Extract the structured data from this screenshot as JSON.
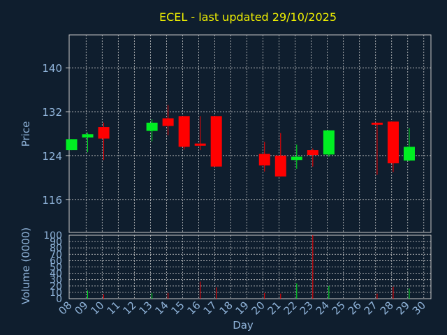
{
  "chart_data": {
    "type": "candlestick",
    "title": "ECEL - last updated 29/10/2025",
    "xlabel": "Day",
    "x_ticks": [
      "08",
      "09",
      "10",
      "11",
      "12",
      "13",
      "14",
      "15",
      "16",
      "17",
      "18",
      "19",
      "20",
      "21",
      "22",
      "23",
      "24",
      "25",
      "26",
      "27",
      "28",
      "29",
      "30"
    ],
    "price": {
      "ylabel": "Price",
      "ylim": [
        110,
        146
      ],
      "yticks": [
        116,
        124,
        132,
        140
      ],
      "candles": [
        {
          "day": 8,
          "open": 125.0,
          "close": 127.0,
          "high": 127.0,
          "low": 125.0
        },
        {
          "day": 9,
          "open": 127.3,
          "close": 127.9,
          "high": 128.2,
          "low": 124.6
        },
        {
          "day": 10,
          "open": 129.2,
          "close": 127.1,
          "high": 130.0,
          "low": 123.2
        },
        {
          "day": 13,
          "open": 128.5,
          "close": 130.0,
          "high": 130.6,
          "low": 126.6
        },
        {
          "day": 14,
          "open": 130.8,
          "close": 129.4,
          "high": 133.2,
          "low": 127.7
        },
        {
          "day": 15,
          "open": 131.2,
          "close": 125.6,
          "high": 131.2,
          "low": 125.1
        },
        {
          "day": 16,
          "open": 126.2,
          "close": 125.8,
          "high": 131.2,
          "low": 125.0
        },
        {
          "day": 17,
          "open": 131.2,
          "close": 122.0,
          "high": 131.2,
          "low": 122.0
        },
        {
          "day": 20,
          "open": 124.3,
          "close": 122.2,
          "high": 126.5,
          "low": 121.1
        },
        {
          "day": 21,
          "open": 124.0,
          "close": 120.2,
          "high": 128.1,
          "low": 120.2
        },
        {
          "day": 22,
          "open": 123.2,
          "close": 123.8,
          "high": 126.0,
          "low": 121.6
        },
        {
          "day": 23,
          "open": 125.0,
          "close": 124.1,
          "high": 125.3,
          "low": 122.0
        },
        {
          "day": 24,
          "open": 124.2,
          "close": 128.6,
          "high": 128.6,
          "low": 123.8
        },
        {
          "day": 27,
          "open": 130.0,
          "close": 129.7,
          "high": 130.0,
          "low": 120.5
        },
        {
          "day": 28,
          "open": 130.2,
          "close": 122.6,
          "high": 130.2,
          "low": 121.0
        },
        {
          "day": 29,
          "open": 123.1,
          "close": 125.6,
          "high": 129.0,
          "low": 123.0
        }
      ]
    },
    "volume": {
      "ylabel": "Volume (0000)",
      "ylim": [
        0,
        100
      ],
      "yticks": [
        0,
        10,
        20,
        30,
        40,
        50,
        60,
        70,
        80,
        90,
        100
      ],
      "bars": [
        {
          "day": 9,
          "value": 13,
          "dir": "up"
        },
        {
          "day": 10,
          "value": 7,
          "dir": "down"
        },
        {
          "day": 13,
          "value": 9,
          "dir": "up"
        },
        {
          "day": 14,
          "value": 9,
          "dir": "down"
        },
        {
          "day": 16,
          "value": 27,
          "dir": "down"
        },
        {
          "day": 17,
          "value": 18,
          "dir": "down"
        },
        {
          "day": 20,
          "value": 9,
          "dir": "down"
        },
        {
          "day": 21,
          "value": 8,
          "dir": "down"
        },
        {
          "day": 22,
          "value": 24,
          "dir": "up"
        },
        {
          "day": 23,
          "value": 100,
          "dir": "down"
        },
        {
          "day": 24,
          "value": 20,
          "dir": "up"
        },
        {
          "day": 27,
          "value": 8,
          "dir": "down"
        },
        {
          "day": 28,
          "value": 19,
          "dir": "down"
        },
        {
          "day": 29,
          "value": 16,
          "dir": "up"
        }
      ]
    },
    "colors": {
      "background": "#0f1e2e",
      "up": "#00ee22",
      "down": "#ff0000",
      "grid": "#c8c8c8",
      "axis_text": "#8fb3d9",
      "title": "#f2f200"
    }
  }
}
